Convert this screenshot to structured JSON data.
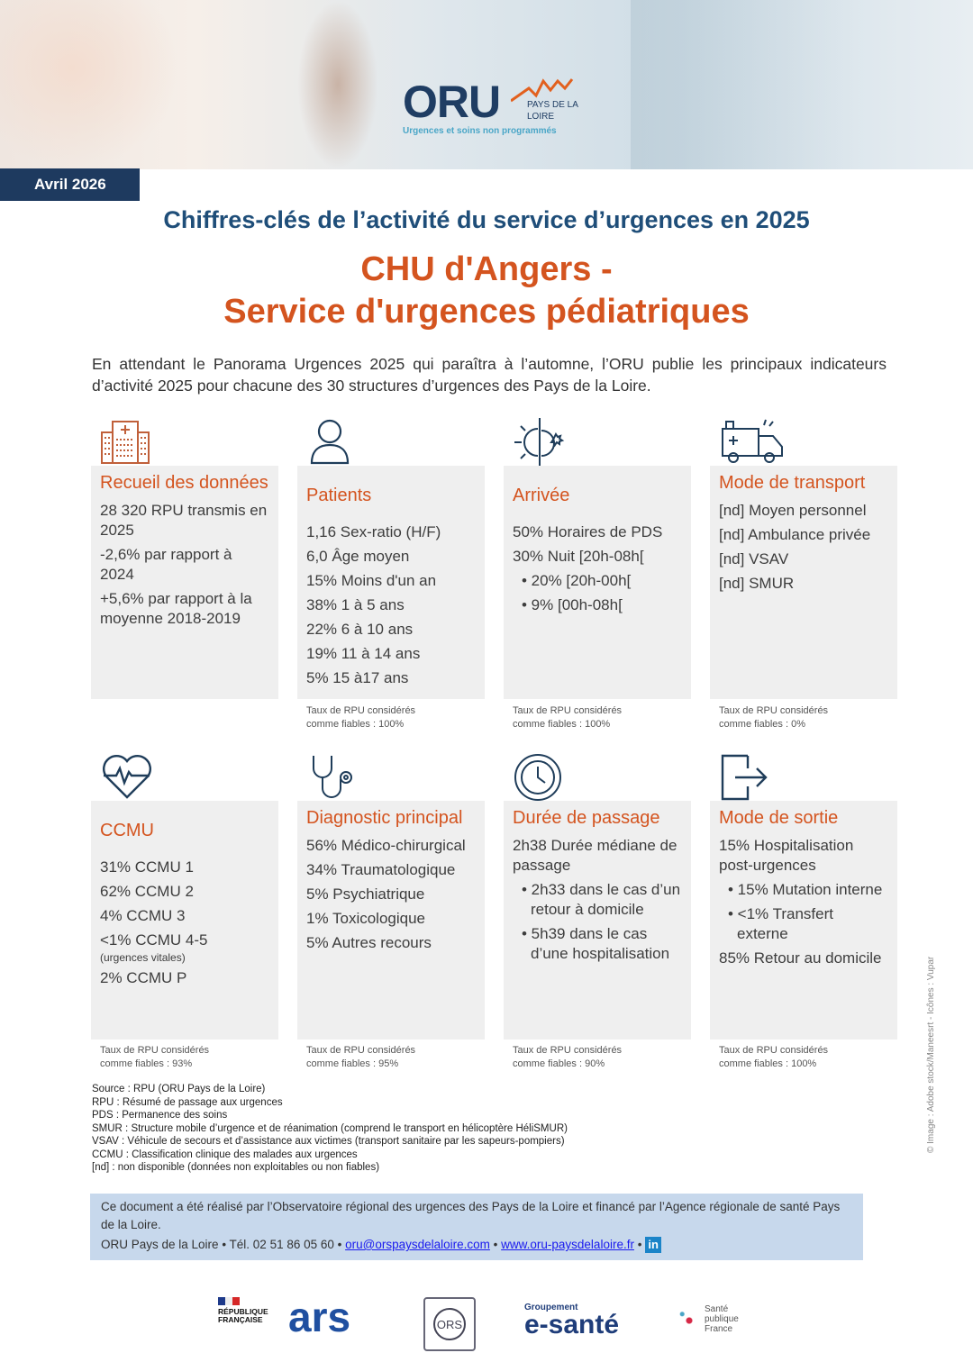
{
  "header": {
    "logo_text": "ORU",
    "logo_region": "PAYS DE LA LOIRE",
    "logo_tagline": "Urgences et soins non programmés",
    "date_badge": "Avril 2026"
  },
  "subtitle": "Chiffres-clés de l’activité du service d’urgences en 2025",
  "title_line1": "CHU d'Angers -",
  "title_line2": "Service d'urgences pédiatriques",
  "intro": "En attendant le Panorama Urgences 2025 qui paraîtra à l’automne, l’ORU publie les principaux indicateurs d’activité 2025 pour chacune des 30 structures d’urgences des Pays de la Loire.",
  "colors": {
    "navy": "#1f4e79",
    "orange": "#d4541f",
    "card_bg": "#efefef",
    "date_bg": "#1e3a5f"
  },
  "cards": [
    {
      "icon": "hospital-icon",
      "title": "Recueil des données",
      "lines": [
        {
          "text": "28 320 RPU transmis en 2025"
        },
        {
          "text": "-2,6% par rapport à 2024"
        },
        {
          "text": "+5,6% par rapport à la moyenne 2018-2019"
        }
      ],
      "footnote": ""
    },
    {
      "icon": "person-icon",
      "title": "Patients",
      "lines": [
        {
          "text": "1,16 Sex-ratio (H/F)"
        },
        {
          "text": "6,0 Âge moyen"
        },
        {
          "text": "15% Moins d'un an"
        },
        {
          "text": "38% 1 à 5 ans"
        },
        {
          "text": "22% 6 à 10 ans"
        },
        {
          "text": "19% 11 à 14 ans"
        },
        {
          "text": "5% 15 à17 ans"
        }
      ],
      "footnote": "Taux de RPU considérés comme fiables : 100%"
    },
    {
      "icon": "sun-moon-icon",
      "title": "Arrivée",
      "lines": [
        {
          "text": "50% Horaires de PDS"
        },
        {
          "text": "30% Nuit [20h-08h["
        },
        {
          "text": "• 20% [20h-00h[",
          "bullet": true
        },
        {
          "text": "• 9% [00h-08h[",
          "bullet": true
        }
      ],
      "footnote": "Taux de RPU considérés comme fiables : 100%"
    },
    {
      "icon": "ambulance-icon",
      "title": "Mode de transport",
      "lines": [
        {
          "text": "[nd] Moyen personnel"
        },
        {
          "text": "[nd] Ambulance privée"
        },
        {
          "text": "[nd] VSAV"
        },
        {
          "text": "[nd] SMUR"
        }
      ],
      "footnote": "Taux de RPU considérés comme fiables : 0%"
    },
    {
      "icon": "heart-pulse-icon",
      "title": "CCMU",
      "lines": [
        {
          "text": "31% CCMU 1"
        },
        {
          "text": "62% CCMU 2"
        },
        {
          "text": "4% CCMU 3"
        },
        {
          "text": "<1% CCMU 4-5"
        },
        {
          "text": "(urgences vitales)",
          "small": true
        },
        {
          "text": "2% CCMU P"
        }
      ],
      "footnote": "Taux de RPU considérés comme fiables : 93%"
    },
    {
      "icon": "stethoscope-icon",
      "title": "Diagnostic principal",
      "lines": [
        {
          "text": "56% Médico-chirurgical"
        },
        {
          "text": "34% Traumatologique"
        },
        {
          "text": "5% Psychiatrique"
        },
        {
          "text": "1% Toxicologique"
        },
        {
          "text": "5% Autres recours"
        }
      ],
      "footnote": "Taux de RPU considérés comme fiables : 95%"
    },
    {
      "icon": "clock-icon",
      "title": "Durée de passage",
      "lines": [
        {
          "text": "2h38 Durée médiane de passage"
        },
        {
          "text": "• 2h33 dans le cas d’un retour à domicile",
          "bullet": true
        },
        {
          "text": "• 5h39 dans le cas d’une hospitalisation",
          "bullet": true
        }
      ],
      "footnote": "Taux de RPU considérés comme fiables : 90%"
    },
    {
      "icon": "exit-icon",
      "title": "Mode de sortie",
      "lines": [
        {
          "text": "15% Hospitalisation post-urgences"
        },
        {
          "text": "• 15% Mutation interne",
          "bullet": true
        },
        {
          "text": "• <1% Transfert externe",
          "bullet": true
        },
        {
          "text": "85% Retour au domicile"
        }
      ],
      "footnote": "Taux de RPU considérés comme fiables : 100%"
    }
  ],
  "definitions": [
    "Source : RPU (ORU Pays de la Loire)",
    "RPU : Résumé de passage aux urgences",
    "PDS : Permanence des soins",
    "SMUR : Structure mobile d’urgence et de réanimation (comprend le transport en hélicoptère HéliSMUR)",
    "VSAV : Véhicule de secours et d’assistance aux victimes (transport sanitaire par les sapeurs-pompiers)",
    "CCMU : Classification clinique des malades aux urgences",
    "[nd] : non disponible (données non exploitables ou non fiables)"
  ],
  "credits": {
    "text": "Ce document a été réalisé par l’Observatoire régional des urgences des Pays de la Loire et financé par l’Agence régionale de santé Pays de la Loire.",
    "org": "ORU Pays de la Loire",
    "phone": "Tél. 02 51 86 05 60",
    "email": "oru@orspaysdelaloire.com",
    "website": "www.oru-paysdelaloire.fr",
    "linkedin": "in"
  },
  "photo_credit": "© Image : Adobe stock/Maneesrt - Icônes : Vupar",
  "partner_logos": [
    {
      "name": "République Française",
      "text": "RÉPUBLIQUE FRANÇAISE"
    },
    {
      "name": "ARS Pays de la Loire",
      "text": "ars"
    },
    {
      "name": "Observatoire régional de la santé",
      "text": "ORS"
    },
    {
      "name": "Groupement e-santé Pays de la Loire",
      "text": "e-santé"
    },
    {
      "name": "Santé publique France",
      "text": "Santé publique France"
    }
  ]
}
